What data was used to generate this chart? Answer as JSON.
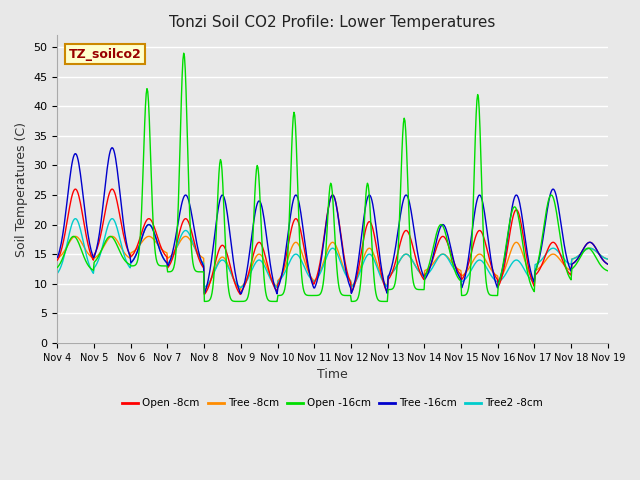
{
  "title": "Tonzi Soil CO2 Profile: Lower Temperatures",
  "xlabel": "Time",
  "ylabel": "Soil Temperatures (C)",
  "ylim": [
    0,
    52
  ],
  "yticks": [
    0,
    5,
    10,
    15,
    20,
    25,
    30,
    35,
    40,
    45,
    50
  ],
  "x_labels": [
    "Nov 4",
    "Nov 5",
    "Nov 6",
    "Nov 7",
    "Nov 8",
    "Nov 9",
    "Nov 10",
    "Nov 11",
    "Nov 12",
    "Nov 13",
    "Nov 14",
    "Nov 15",
    "Nov 16",
    "Nov 17",
    "Nov 18",
    "Nov 19"
  ],
  "watermark_text": "TZ_soilco2",
  "series": [
    {
      "label": "Open -8cm",
      "color": "#ff0000"
    },
    {
      "label": "Tree -8cm",
      "color": "#ff8c00"
    },
    {
      "label": "Open -16cm",
      "color": "#00dd00"
    },
    {
      "label": "Tree -16cm",
      "color": "#0000cc"
    },
    {
      "label": "Tree2 -8cm",
      "color": "#00cccc"
    }
  ],
  "bg_color": "#e8e8e8",
  "grid_color": "#ffffff",
  "n_days": 15,
  "pts_per_day": 48,
  "o8_base": [
    13,
    14,
    14,
    12,
    7.5,
    8,
    9,
    9,
    7.5,
    10,
    11,
    10,
    8.5,
    11,
    13
  ],
  "o8_amp": [
    13,
    12,
    7,
    9,
    9,
    9,
    12,
    16,
    13,
    9,
    7,
    9,
    14,
    6,
    4
  ],
  "t8_base": [
    14,
    14,
    15,
    14,
    8.5,
    9,
    10,
    10,
    9,
    11,
    12,
    11,
    10,
    12,
    14
  ],
  "t8_amp": [
    4,
    4,
    3,
    4,
    6,
    6,
    7,
    7,
    7,
    4,
    3,
    4,
    7,
    3,
    2
  ],
  "o16_base": [
    12,
    13,
    13,
    12,
    7,
    7,
    8,
    8,
    7,
    9,
    10,
    8,
    8,
    10,
    12
  ],
  "o16_amp": [
    6,
    5,
    30,
    37,
    24,
    23,
    31,
    19,
    20,
    29,
    10,
    34,
    15,
    15,
    4
  ],
  "t16_base": [
    13,
    13,
    13,
    12,
    7,
    7,
    8,
    8,
    7,
    10,
    10,
    8,
    9,
    11,
    13
  ],
  "t16_amp": [
    19,
    20,
    7,
    13,
    18,
    17,
    17,
    17,
    18,
    15,
    10,
    17,
    16,
    15,
    4
  ],
  "t2_base": [
    11,
    12,
    13,
    13,
    9,
    9,
    10,
    10,
    9,
    11,
    11,
    10,
    10,
    13,
    14
  ],
  "t2_amp": [
    10,
    9,
    7,
    6,
    5,
    5,
    5,
    6,
    6,
    4,
    4,
    4,
    4,
    3,
    2
  ]
}
